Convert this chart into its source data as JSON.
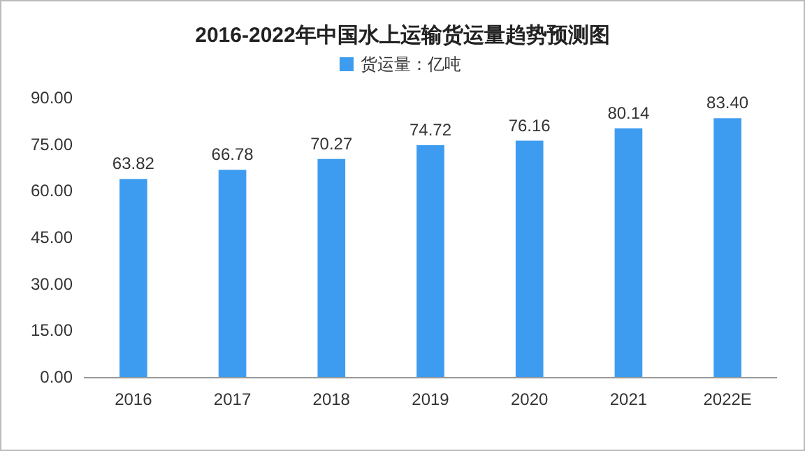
{
  "chart_data": {
    "type": "bar",
    "title": "2016-2022年中国水上运输货运量趋势预测图",
    "categories": [
      "2016",
      "2017",
      "2018",
      "2019",
      "2020",
      "2021",
      "2022E"
    ],
    "series": [
      {
        "name": "货运量：亿吨",
        "color": "#3d9cf0",
        "values": [
          63.82,
          66.78,
          70.27,
          74.72,
          76.16,
          80.14,
          83.4
        ],
        "value_labels": [
          "63.82",
          "66.78",
          "70.27",
          "74.72",
          "76.16",
          "80.14",
          "83.40"
        ]
      }
    ],
    "ylim": [
      0,
      90
    ],
    "yticks": [
      {
        "value": 0,
        "label": "0.00"
      },
      {
        "value": 15,
        "label": "15.00"
      },
      {
        "value": 30,
        "label": "30.00"
      },
      {
        "value": 45,
        "label": "45.00"
      },
      {
        "value": 60,
        "label": "60.00"
      },
      {
        "value": 75,
        "label": "75.00"
      },
      {
        "value": 90,
        "label": "90.00"
      }
    ],
    "grid": false,
    "legend": "top"
  }
}
